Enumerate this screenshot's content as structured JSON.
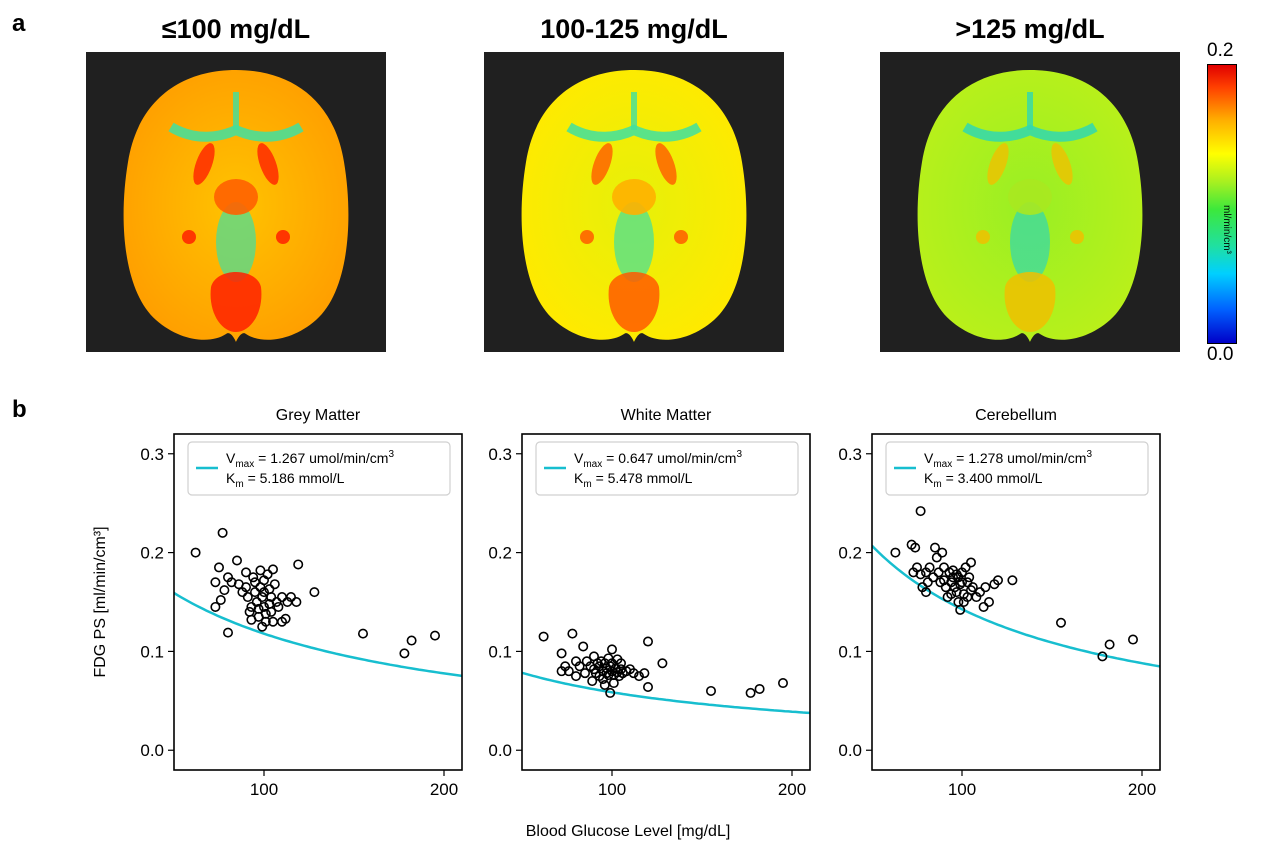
{
  "panel_a": {
    "letter": "a",
    "maps": [
      {
        "title": "≤100 mg/dL",
        "level": 0.85
      },
      {
        "title": "100-125 mg/dL",
        "level": 0.6
      },
      {
        "title": ">125 mg/dL",
        "level": 0.3
      }
    ],
    "colorbar": {
      "max": "0.2",
      "min": "0.0",
      "unit": "ml/min/cm³"
    }
  },
  "panel_b": {
    "letter": "b"
  },
  "chart_data": [
    {
      "type": "scatter",
      "title": "Grey Matter",
      "xlabel": "Blood Glucose Level [mg/dL]",
      "ylabel": "FDG PS [ml/min/cm³]",
      "xlim": [
        50,
        210
      ],
      "ylim": [
        -0.02,
        0.32
      ],
      "xticks": [
        100,
        200
      ],
      "yticks": [
        0.0,
        0.1,
        0.2,
        0.3
      ],
      "legend": {
        "line1": "V",
        "line1_sub": "max",
        "line1_rest": " = 1.267 umol/min/cm",
        "line1_sup": "3",
        "line2": "K",
        "line2_sub": "m",
        "line2_rest": " = 5.186 mmol/L",
        "placement": "top"
      },
      "fit": {
        "Vmax": 1.267,
        "Km": 5.186,
        "color": "#17becf"
      },
      "points": [
        [
          62,
          0.2
        ],
        [
          73,
          0.17
        ],
        [
          75,
          0.185
        ],
        [
          77,
          0.22
        ],
        [
          73,
          0.145
        ],
        [
          76,
          0.152
        ],
        [
          78,
          0.162
        ],
        [
          80,
          0.175
        ],
        [
          80,
          0.119
        ],
        [
          82,
          0.17
        ],
        [
          85,
          0.192
        ],
        [
          86,
          0.168
        ],
        [
          88,
          0.16
        ],
        [
          90,
          0.18
        ],
        [
          90,
          0.165
        ],
        [
          91,
          0.155
        ],
        [
          92,
          0.14
        ],
        [
          93,
          0.145
        ],
        [
          93,
          0.132
        ],
        [
          94,
          0.175
        ],
        [
          95,
          0.17
        ],
        [
          95,
          0.16
        ],
        [
          96,
          0.15
        ],
        [
          97,
          0.143
        ],
        [
          97,
          0.135
        ],
        [
          98,
          0.182
        ],
        [
          98,
          0.165
        ],
        [
          99,
          0.155
        ],
        [
          99,
          0.125
        ],
        [
          100,
          0.172
        ],
        [
          100,
          0.16
        ],
        [
          100,
          0.145
        ],
        [
          101,
          0.138
        ],
        [
          101,
          0.13
        ],
        [
          102,
          0.178
        ],
        [
          103,
          0.163
        ],
        [
          103,
          0.148
        ],
        [
          104,
          0.155
        ],
        [
          104,
          0.14
        ],
        [
          105,
          0.183
        ],
        [
          105,
          0.13
        ],
        [
          106,
          0.168
        ],
        [
          107,
          0.15
        ],
        [
          108,
          0.145
        ],
        [
          110,
          0.155
        ],
        [
          110,
          0.13
        ],
        [
          112,
          0.133
        ],
        [
          113,
          0.15
        ],
        [
          115,
          0.155
        ],
        [
          118,
          0.15
        ],
        [
          119,
          0.188
        ],
        [
          128,
          0.16
        ],
        [
          155,
          0.118
        ],
        [
          178,
          0.098
        ],
        [
          182,
          0.111
        ],
        [
          195,
          0.116
        ]
      ]
    },
    {
      "type": "scatter",
      "title": "White Matter",
      "xlabel": "",
      "ylabel": "",
      "xlim": [
        50,
        210
      ],
      "ylim": [
        -0.02,
        0.32
      ],
      "xticks": [
        100,
        200
      ],
      "yticks": [
        0.0,
        0.1,
        0.2,
        0.3
      ],
      "legend": {
        "line1": "V",
        "line1_sub": "max",
        "line1_rest": " = 0.647 umol/min/cm",
        "line1_sup": "3",
        "line2": "K",
        "line2_sub": "m",
        "line2_rest": " = 5.478 mmol/L",
        "placement": "top"
      },
      "fit": {
        "Vmax": 0.647,
        "Km": 5.478,
        "color": "#17becf"
      },
      "points": [
        [
          62,
          0.115
        ],
        [
          72,
          0.098
        ],
        [
          72,
          0.08
        ],
        [
          74,
          0.085
        ],
        [
          76,
          0.08
        ],
        [
          78,
          0.118
        ],
        [
          80,
          0.09
        ],
        [
          80,
          0.075
        ],
        [
          82,
          0.085
        ],
        [
          84,
          0.105
        ],
        [
          85,
          0.078
        ],
        [
          86,
          0.09
        ],
        [
          88,
          0.085
        ],
        [
          89,
          0.07
        ],
        [
          90,
          0.095
        ],
        [
          90,
          0.082
        ],
        [
          91,
          0.078
        ],
        [
          92,
          0.088
        ],
        [
          93,
          0.085
        ],
        [
          93,
          0.075
        ],
        [
          94,
          0.09
        ],
        [
          95,
          0.08
        ],
        [
          95,
          0.072
        ],
        [
          96,
          0.088
        ],
        [
          96,
          0.066
        ],
        [
          97,
          0.083
        ],
        [
          97,
          0.078
        ],
        [
          98,
          0.093
        ],
        [
          98,
          0.076
        ],
        [
          99,
          0.085
        ],
        [
          99,
          0.058
        ],
        [
          100,
          0.102
        ],
        [
          100,
          0.088
        ],
        [
          100,
          0.08
        ],
        [
          101,
          0.076
        ],
        [
          101,
          0.068
        ],
        [
          102,
          0.083
        ],
        [
          103,
          0.092
        ],
        [
          103,
          0.079
        ],
        [
          104,
          0.075
        ],
        [
          105,
          0.088
        ],
        [
          105,
          0.082
        ],
        [
          106,
          0.078
        ],
        [
          108,
          0.08
        ],
        [
          110,
          0.082
        ],
        [
          112,
          0.078
        ],
        [
          115,
          0.075
        ],
        [
          118,
          0.078
        ],
        [
          120,
          0.11
        ],
        [
          120,
          0.064
        ],
        [
          128,
          0.088
        ],
        [
          155,
          0.06
        ],
        [
          177,
          0.058
        ],
        [
          182,
          0.062
        ],
        [
          195,
          0.068
        ]
      ]
    },
    {
      "type": "scatter",
      "title": "Cerebellum",
      "xlabel": "",
      "ylabel": "",
      "xlim": [
        50,
        210
      ],
      "ylim": [
        -0.02,
        0.32
      ],
      "xticks": [
        100,
        200
      ],
      "yticks": [
        0.0,
        0.1,
        0.2,
        0.3
      ],
      "legend": {
        "line1": "V",
        "line1_sub": "max",
        "line1_rest": " = 1.278 umol/min/cm",
        "line1_sup": "3",
        "line2": "K",
        "line2_sub": "m",
        "line2_rest": " = 3.400 mmol/L",
        "placement": "top"
      },
      "fit": {
        "Vmax": 1.278,
        "Km": 3.4,
        "color": "#17becf"
      },
      "points": [
        [
          63,
          0.2
        ],
        [
          72,
          0.208
        ],
        [
          73,
          0.18
        ],
        [
          74,
          0.205
        ],
        [
          75,
          0.185
        ],
        [
          77,
          0.242
        ],
        [
          77,
          0.178
        ],
        [
          78,
          0.165
        ],
        [
          80,
          0.16
        ],
        [
          80,
          0.18
        ],
        [
          81,
          0.17
        ],
        [
          82,
          0.185
        ],
        [
          84,
          0.175
        ],
        [
          85,
          0.205
        ],
        [
          86,
          0.195
        ],
        [
          87,
          0.18
        ],
        [
          88,
          0.17
        ],
        [
          89,
          0.2
        ],
        [
          90,
          0.185
        ],
        [
          90,
          0.172
        ],
        [
          91,
          0.165
        ],
        [
          92,
          0.155
        ],
        [
          93,
          0.18
        ],
        [
          94,
          0.17
        ],
        [
          94,
          0.158
        ],
        [
          95,
          0.182
        ],
        [
          95,
          0.175
        ],
        [
          96,
          0.165
        ],
        [
          97,
          0.178
        ],
        [
          97,
          0.16
        ],
        [
          98,
          0.175
        ],
        [
          98,
          0.15
        ],
        [
          99,
          0.168
        ],
        [
          99,
          0.142
        ],
        [
          100,
          0.18
        ],
        [
          100,
          0.17
        ],
        [
          101,
          0.158
        ],
        [
          101,
          0.15
        ],
        [
          102,
          0.185
        ],
        [
          103,
          0.17
        ],
        [
          103,
          0.155
        ],
        [
          104,
          0.175
        ],
        [
          105,
          0.19
        ],
        [
          105,
          0.162
        ],
        [
          106,
          0.165
        ],
        [
          108,
          0.155
        ],
        [
          110,
          0.16
        ],
        [
          112,
          0.145
        ],
        [
          113,
          0.165
        ],
        [
          115,
          0.15
        ],
        [
          118,
          0.168
        ],
        [
          120,
          0.172
        ],
        [
          128,
          0.172
        ],
        [
          155,
          0.129
        ],
        [
          178,
          0.095
        ],
        [
          182,
          0.107
        ],
        [
          195,
          0.112
        ]
      ]
    }
  ]
}
